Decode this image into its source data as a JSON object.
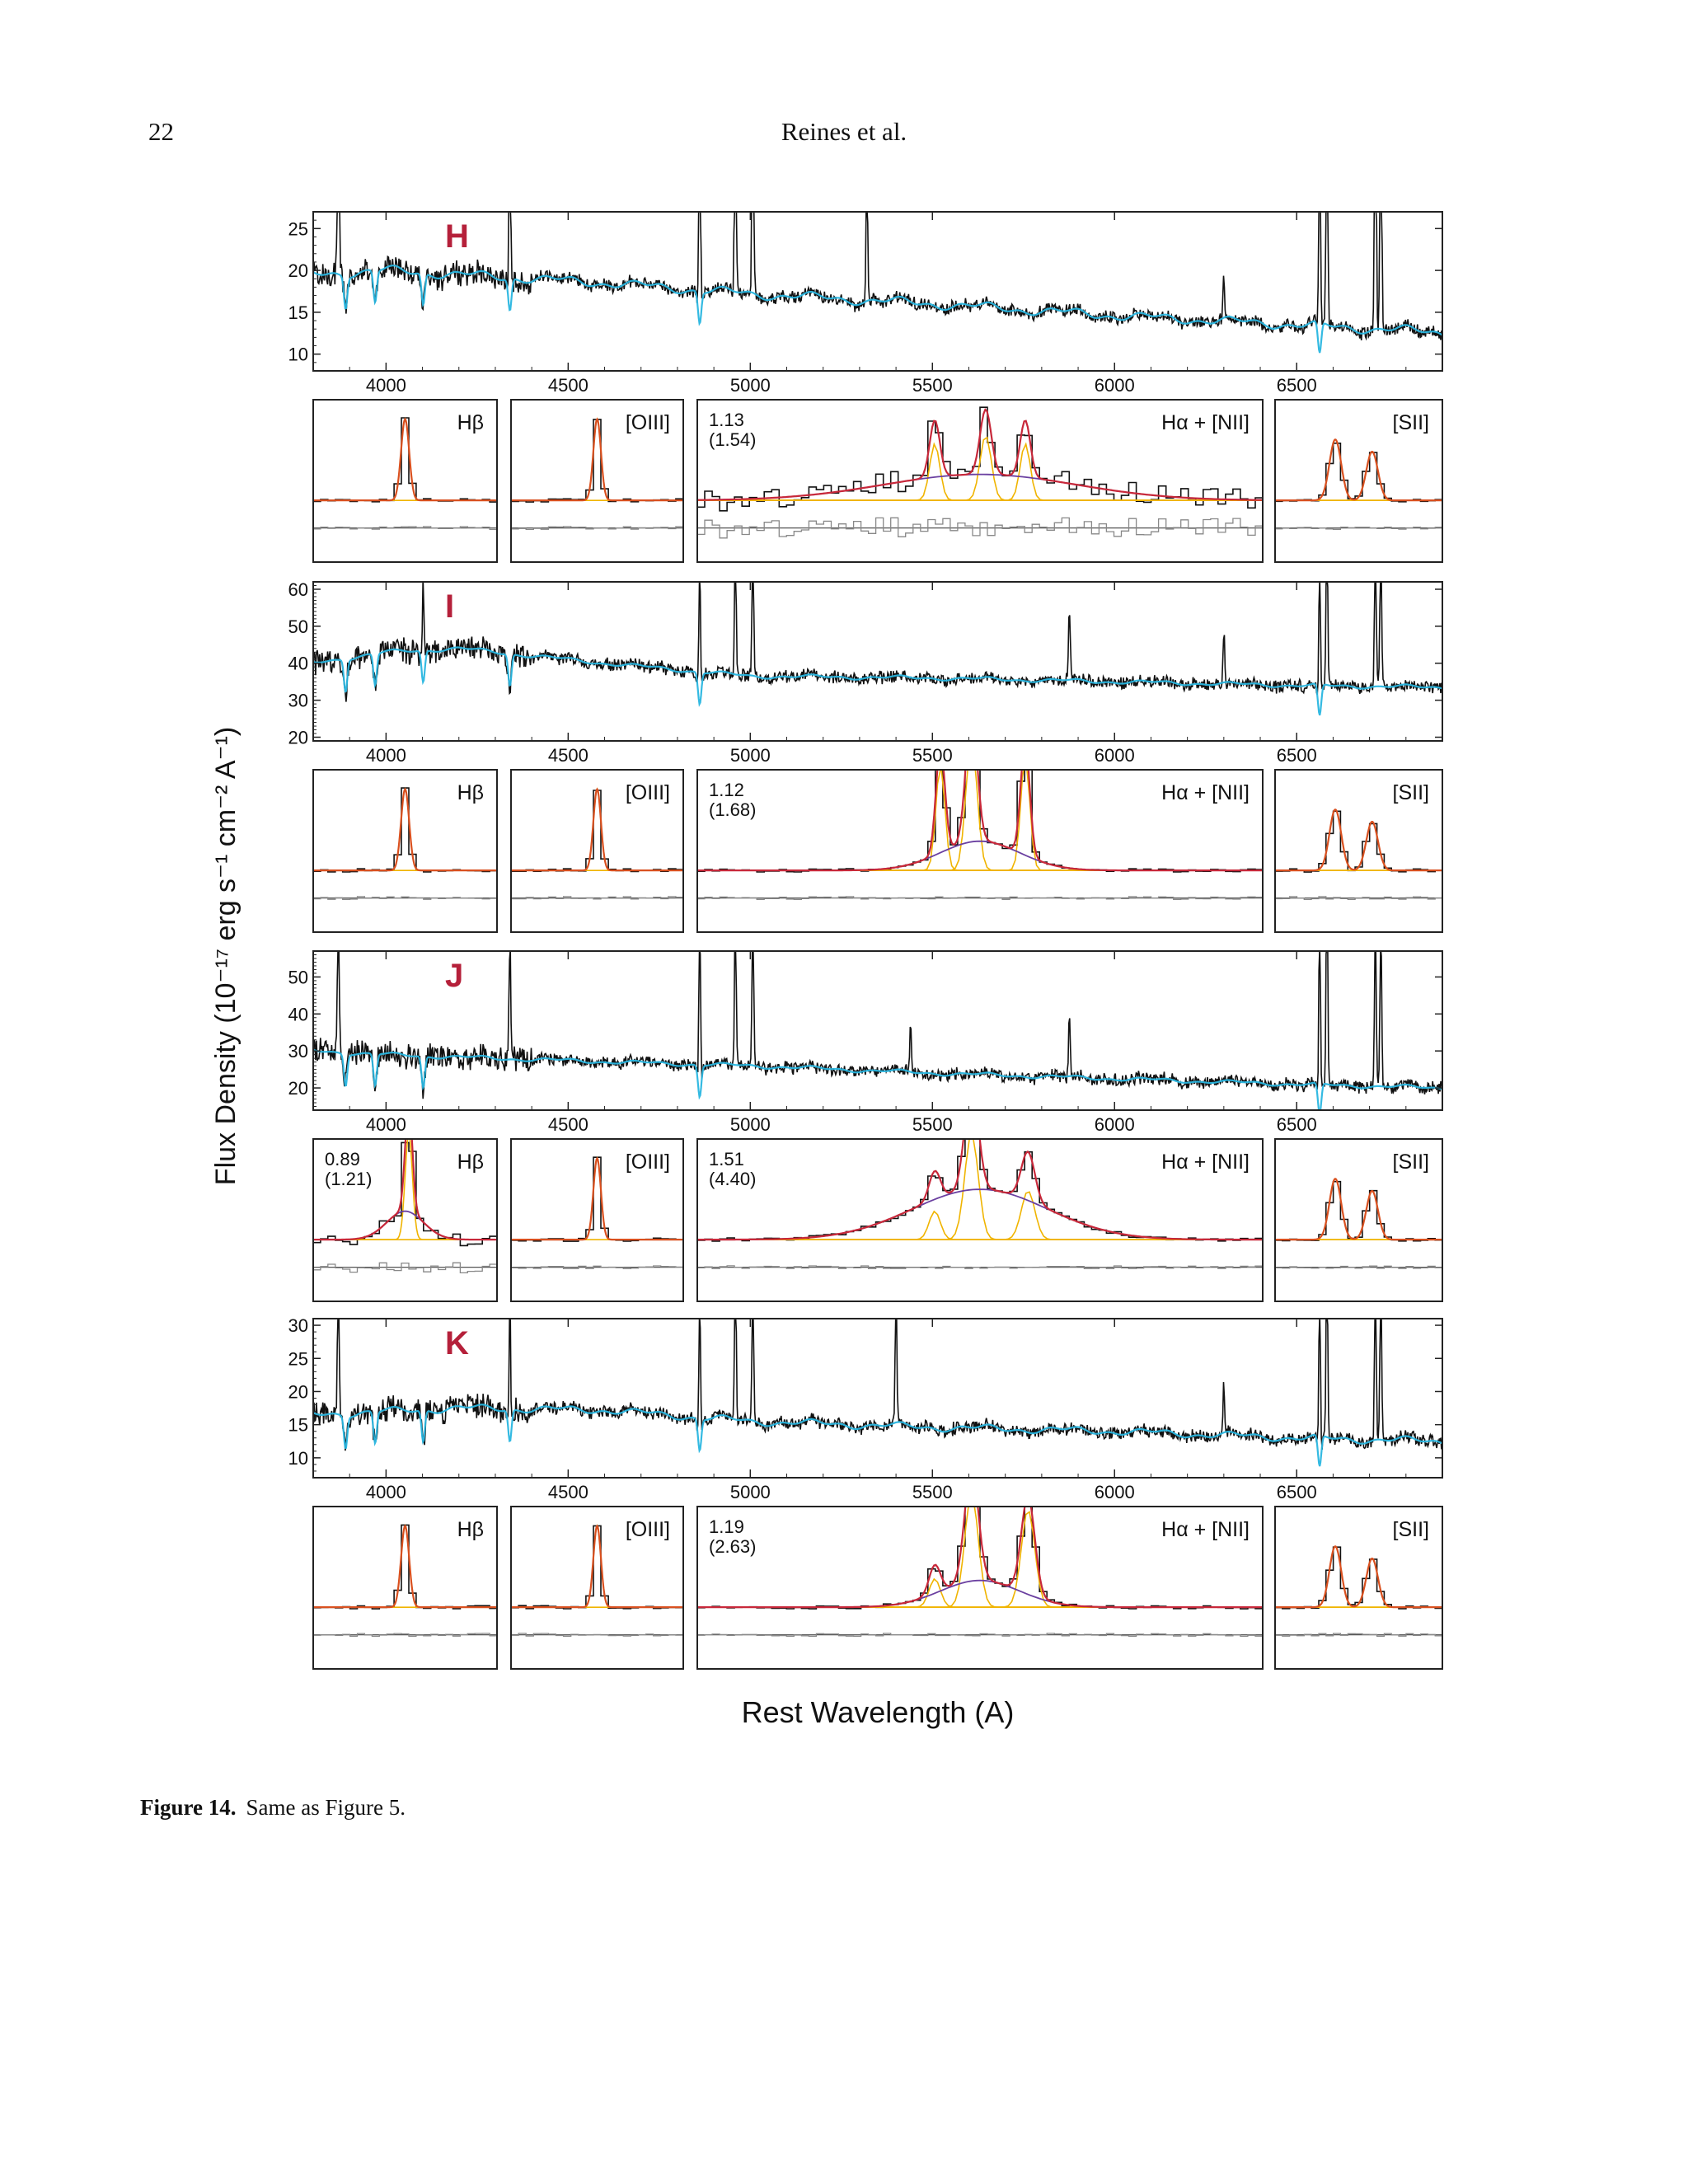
{
  "page": {
    "number": "22",
    "running_head": "Reines et al."
  },
  "figure": {
    "caption_label": "Figure 14.",
    "caption_text": "Same as Figure 5.",
    "y_axis_label": "Flux Density (10⁻¹⁷ erg s⁻¹ cm⁻² A⁻¹)",
    "x_axis_label": "Rest Wavelength (A)"
  },
  "colors": {
    "spectrum": "#111111",
    "model": "#29b6e0",
    "fit": "#d9501f",
    "component": "#f0b400",
    "broad": "#6a3fa0",
    "continuum": "#c8283a",
    "residual": "#888888",
    "object_label": "#b5203a"
  },
  "chart_data": {
    "type": "line",
    "x_axis": {
      "label": "Rest Wavelength (A)",
      "range": [
        3800,
        6900
      ],
      "ticks": [
        4000,
        4500,
        5000,
        5500,
        6000,
        6500
      ]
    },
    "y_axis_label": "Flux Density (10⁻¹⁷ erg s⁻¹ cm⁻² A⁻¹)",
    "legend": "none",
    "line_panels": [
      "Hβ",
      "[OIII]",
      "Hα + [NII]",
      "[SII]"
    ],
    "objects": [
      {
        "name": "H",
        "ylim": [
          8,
          27
        ],
        "yticks": [
          10,
          15,
          20,
          25
        ],
        "continuum": [
          [
            3800,
            19.5
          ],
          [
            4000,
            20
          ],
          [
            4200,
            19.5
          ],
          [
            4600,
            18.5
          ],
          [
            5000,
            17.2
          ],
          [
            5500,
            16
          ],
          [
            6000,
            14.6
          ],
          [
            6500,
            13.5
          ],
          [
            6900,
            12.6
          ]
        ],
        "emission_lines": [
          {
            "wl": 3869,
            "peak": 40
          },
          {
            "wl": 4340,
            "peak": 40
          },
          {
            "wl": 4861,
            "peak": 40
          },
          {
            "wl": 4959,
            "peak": 40
          },
          {
            "wl": 5007,
            "peak": 40
          },
          {
            "wl": 5320,
            "peak": 27
          },
          {
            "wl": 6300,
            "peak": 17
          },
          {
            "wl": 6563,
            "peak": 40
          },
          {
            "wl": 6583,
            "peak": 40
          },
          {
            "wl": 6716,
            "peak": 40
          },
          {
            "wl": 6731,
            "peak": 40
          }
        ],
        "absorption_lines": [
          3889,
          3970,
          4102,
          4340,
          4861,
          6563
        ],
        "hbeta_broad": null,
        "halpha_broad": [
          "1.13",
          "(1.54)"
        ]
      },
      {
        "name": "I",
        "ylim": [
          19,
          62
        ],
        "yticks": [
          20,
          30,
          40,
          50,
          60
        ],
        "continuum": [
          [
            3800,
            40
          ],
          [
            4000,
            43
          ],
          [
            4200,
            44
          ],
          [
            4600,
            40
          ],
          [
            5000,
            36.5
          ],
          [
            5500,
            36
          ],
          [
            6000,
            35
          ],
          [
            6500,
            34
          ],
          [
            6900,
            33.5
          ]
        ],
        "emission_lines": [
          {
            "wl": 4102,
            "peak": 62
          },
          {
            "wl": 4861,
            "peak": 62
          },
          {
            "wl": 4959,
            "peak": 62
          },
          {
            "wl": 5007,
            "peak": 62
          },
          {
            "wl": 5876,
            "peak": 48
          },
          {
            "wl": 6300,
            "peak": 43
          },
          {
            "wl": 6563,
            "peak": 62
          },
          {
            "wl": 6583,
            "peak": 62
          },
          {
            "wl": 6716,
            "peak": 62
          },
          {
            "wl": 6731,
            "peak": 62
          }
        ],
        "absorption_lines": [
          3889,
          3970,
          4102,
          4340,
          4861,
          6563
        ],
        "hbeta_broad": null,
        "halpha_broad": [
          "1.12",
          "(1.68)"
        ]
      },
      {
        "name": "J",
        "ylim": [
          14,
          57
        ],
        "yticks": [
          20,
          30,
          40,
          50
        ],
        "continuum": [
          [
            3800,
            30
          ],
          [
            4000,
            29
          ],
          [
            4300,
            28
          ],
          [
            4800,
            26.5
          ],
          [
            5000,
            26
          ],
          [
            5500,
            24
          ],
          [
            6000,
            22.5
          ],
          [
            6500,
            21
          ],
          [
            6900,
            20
          ]
        ],
        "emission_lines": [
          {
            "wl": 3869,
            "peak": 57
          },
          {
            "wl": 4340,
            "peak": 48
          },
          {
            "wl": 4861,
            "peak": 57
          },
          {
            "wl": 4959,
            "peak": 54
          },
          {
            "wl": 5007,
            "peak": 57
          },
          {
            "wl": 5440,
            "peak": 32
          },
          {
            "wl": 5876,
            "peak": 34
          },
          {
            "wl": 6563,
            "peak": 57
          },
          {
            "wl": 6583,
            "peak": 57
          },
          {
            "wl": 6716,
            "peak": 52
          },
          {
            "wl": 6731,
            "peak": 50
          }
        ],
        "absorption_lines": [
          3889,
          3970,
          4102,
          4861,
          6563
        ],
        "hbeta_broad": [
          "0.89",
          "(1.21)"
        ],
        "halpha_broad": [
          "1.51",
          "(4.40)"
        ]
      },
      {
        "name": "K",
        "ylim": [
          7,
          31
        ],
        "yticks": [
          10,
          15,
          20,
          25,
          30
        ],
        "continuum": [
          [
            3800,
            16.5
          ],
          [
            4000,
            17
          ],
          [
            4200,
            17.5
          ],
          [
            4600,
            17.2
          ],
          [
            5000,
            15.5
          ],
          [
            5500,
            14.6
          ],
          [
            6000,
            14
          ],
          [
            6500,
            13
          ],
          [
            6900,
            12.5
          ]
        ],
        "emission_lines": [
          {
            "wl": 3869,
            "peak": 31
          },
          {
            "wl": 4340,
            "peak": 31
          },
          {
            "wl": 4861,
            "peak": 31
          },
          {
            "wl": 4959,
            "peak": 31
          },
          {
            "wl": 5007,
            "peak": 31
          },
          {
            "wl": 5400,
            "peak": 28
          },
          {
            "wl": 6300,
            "peak": 18
          },
          {
            "wl": 6563,
            "peak": 31
          },
          {
            "wl": 6583,
            "peak": 31
          },
          {
            "wl": 6716,
            "peak": 31
          },
          {
            "wl": 6731,
            "peak": 31
          }
        ],
        "absorption_lines": [
          3889,
          3970,
          4102,
          4340,
          4861,
          6563
        ],
        "hbeta_broad": null,
        "halpha_broad": [
          "1.19",
          "(2.63)"
        ]
      }
    ]
  }
}
